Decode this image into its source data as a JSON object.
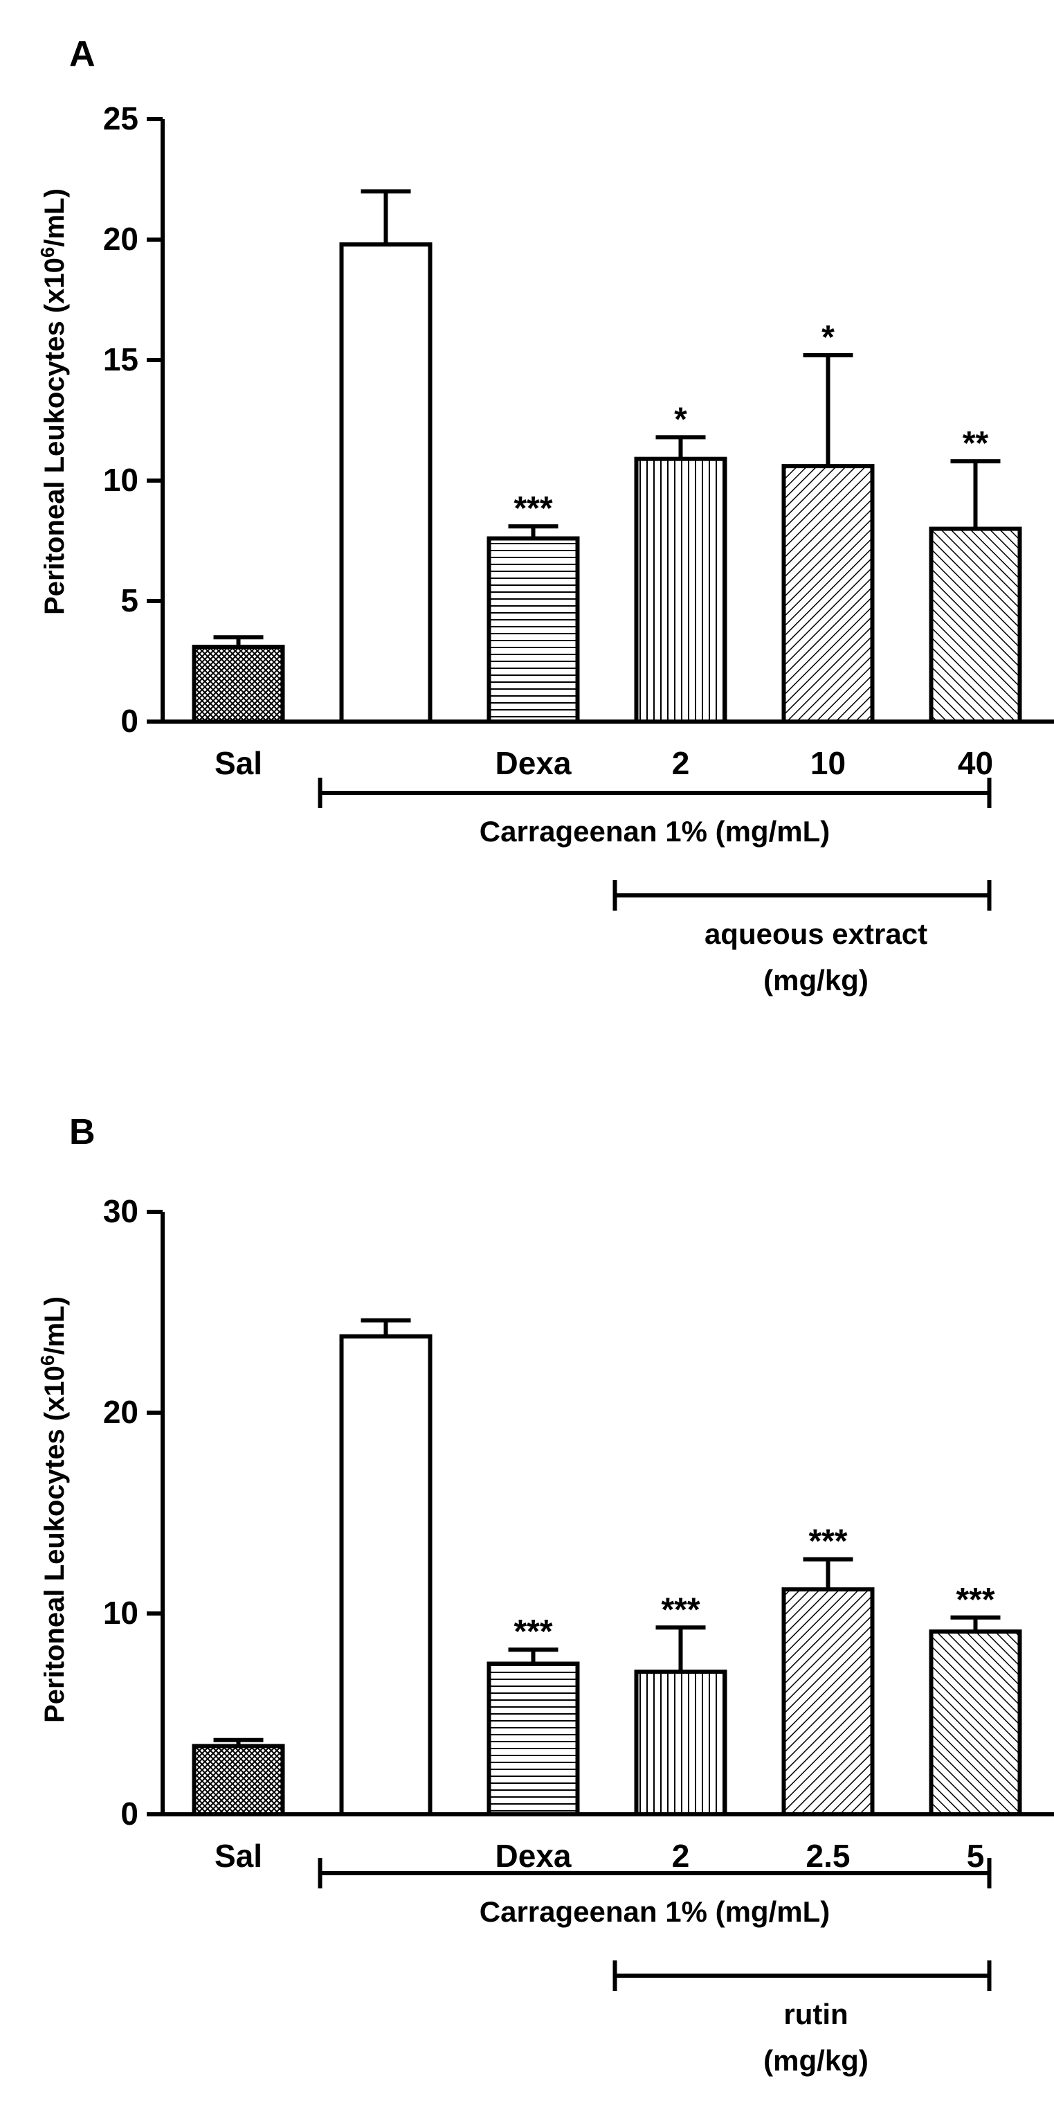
{
  "chart_data": [
    {
      "panel": "A",
      "type": "bar",
      "ylabel": "Peritoneal Leukocytes (x10",
      "ylabel_sup": "6",
      "ylabel_end": "/mL)",
      "ylim": [
        0,
        25
      ],
      "yticks": [
        "0",
        "5",
        "10",
        "15",
        "20",
        "25"
      ],
      "categories": [
        "Sal",
        "",
        "Dexa",
        "2",
        "10",
        "40"
      ],
      "values": [
        3.1,
        19.8,
        7.6,
        10.9,
        10.6,
        8.0
      ],
      "errors": [
        0.4,
        2.2,
        0.5,
        0.9,
        4.6,
        2.8
      ],
      "significance": [
        "",
        "",
        "***",
        "*",
        "*",
        "**"
      ],
      "patterns": [
        "crosshatch",
        "none",
        "horizontal",
        "vertical",
        "diagonal-right",
        "diagonal-left"
      ],
      "brackets": [
        {
          "label": "Carrageenan 1% (mg/mL)",
          "from": 1,
          "to": 5
        },
        {
          "label": "aqueous extract",
          "label2": "(mg/kg)",
          "from": 3,
          "to": 5
        }
      ]
    },
    {
      "panel": "B",
      "type": "bar",
      "ylabel": "Peritoneal Leukocytes (x10",
      "ylabel_sup": "6",
      "ylabel_end": "/mL)",
      "ylim": [
        0,
        30
      ],
      "yticks": [
        "0",
        "10",
        "20",
        "30"
      ],
      "categories": [
        "Sal",
        "",
        "Dexa",
        "2",
        "2.5",
        "5"
      ],
      "values": [
        3.4,
        23.8,
        7.5,
        7.1,
        11.2,
        9.1
      ],
      "errors": [
        0.3,
        0.8,
        0.7,
        2.2,
        1.5,
        0.7
      ],
      "significance": [
        "",
        "",
        "***",
        "***",
        "***",
        "***"
      ],
      "patterns": [
        "crosshatch",
        "none",
        "horizontal",
        "vertical",
        "diagonal-right",
        "diagonal-left"
      ],
      "brackets": [
        {
          "label": "Carrageenan 1% (mg/mL)",
          "from": 1,
          "to": 5
        },
        {
          "label": "rutin",
          "label2": "(mg/kg)",
          "from": 3,
          "to": 5
        }
      ]
    }
  ]
}
